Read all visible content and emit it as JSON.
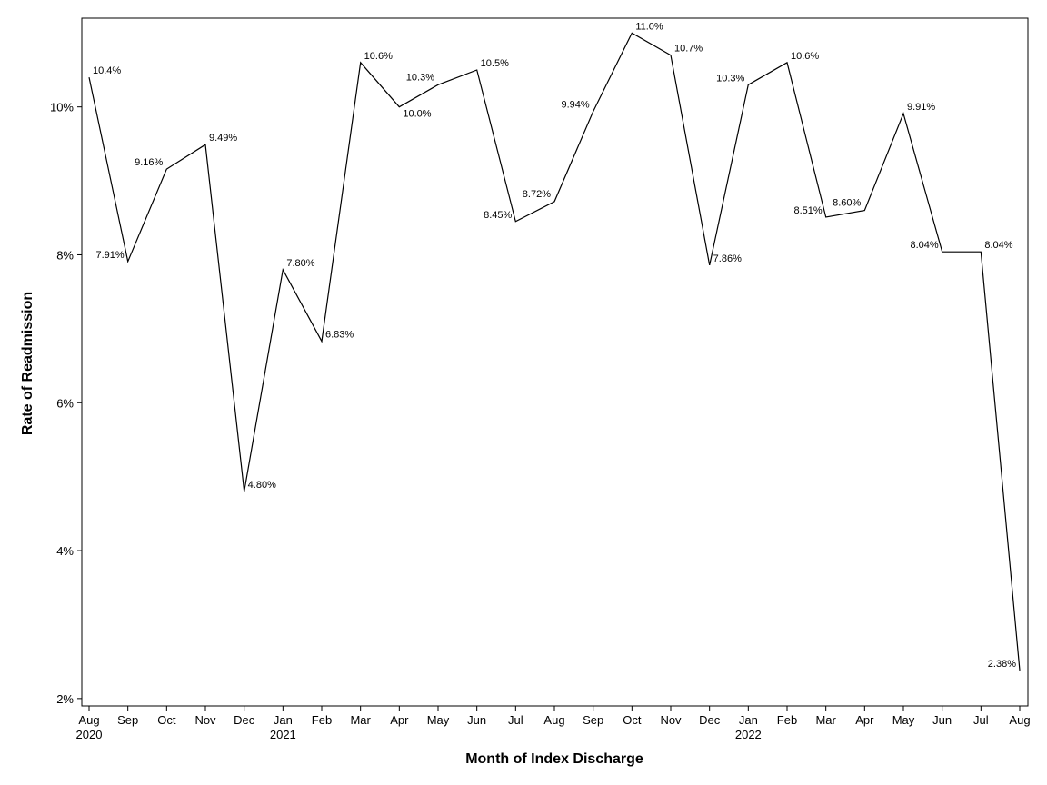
{
  "chart_data": {
    "type": "line",
    "xlabel": "Month of Index Discharge",
    "ylabel": "Rate of Readmission",
    "ylim": [
      1.9,
      11.2
    ],
    "grid": false,
    "legend": "none",
    "line_color": "#000000",
    "y_ticks": [
      {
        "value": 2,
        "label": "2%"
      },
      {
        "value": 4,
        "label": "4%"
      },
      {
        "value": 6,
        "label": "6%"
      },
      {
        "value": 8,
        "label": "8%"
      },
      {
        "value": 10,
        "label": "10%"
      }
    ],
    "points": [
      {
        "month": "Aug",
        "year": "2020",
        "value": 10.4,
        "label": "10.4%",
        "label_pos": "right"
      },
      {
        "month": "Sep",
        "year": "",
        "value": 7.91,
        "label": "7.91%",
        "label_pos": "left"
      },
      {
        "month": "Oct",
        "year": "",
        "value": 9.16,
        "label": "9.16%",
        "label_pos": "left"
      },
      {
        "month": "Nov",
        "year": "",
        "value": 9.49,
        "label": "9.49%",
        "label_pos": "right"
      },
      {
        "month": "Dec",
        "year": "",
        "value": 4.8,
        "label": "4.80%",
        "label_pos": "right"
      },
      {
        "month": "Jan",
        "year": "2021",
        "value": 7.8,
        "label": "7.80%",
        "label_pos": "right"
      },
      {
        "month": "Feb",
        "year": "",
        "value": 6.83,
        "label": "6.83%",
        "label_pos": "right"
      },
      {
        "month": "Mar",
        "year": "",
        "value": 10.6,
        "label": "10.6%",
        "label_pos": "right"
      },
      {
        "month": "Apr",
        "year": "",
        "value": 10.0,
        "label": "10.0%",
        "label_pos": "below"
      },
      {
        "month": "May",
        "year": "",
        "value": 10.3,
        "label": "10.3%",
        "label_pos": "above-left"
      },
      {
        "month": "Jun",
        "year": "",
        "value": 10.5,
        "label": "10.5%",
        "label_pos": "right"
      },
      {
        "month": "Jul",
        "year": "",
        "value": 8.45,
        "label": "8.45%",
        "label_pos": "left"
      },
      {
        "month": "Aug",
        "year": "",
        "value": 8.72,
        "label": "8.72%",
        "label_pos": "above-left"
      },
      {
        "month": "Sep",
        "year": "",
        "value": 9.94,
        "label": "9.94%",
        "label_pos": "left"
      },
      {
        "month": "Oct",
        "year": "",
        "value": 11.0,
        "label": "11.0%",
        "label_pos": "right"
      },
      {
        "month": "Nov",
        "year": "",
        "value": 10.7,
        "label": "10.7%",
        "label_pos": "right"
      },
      {
        "month": "Dec",
        "year": "",
        "value": 7.86,
        "label": "7.86%",
        "label_pos": "right"
      },
      {
        "month": "Jan",
        "year": "2022",
        "value": 10.3,
        "label": "10.3%",
        "label_pos": "left"
      },
      {
        "month": "Feb",
        "year": "",
        "value": 10.6,
        "label": "10.6%",
        "label_pos": "right"
      },
      {
        "month": "Mar",
        "year": "",
        "value": 8.51,
        "label": "8.51%",
        "label_pos": "left"
      },
      {
        "month": "Apr",
        "year": "",
        "value": 8.6,
        "label": "8.60%",
        "label_pos": "above-left"
      },
      {
        "month": "May",
        "year": "",
        "value": 9.91,
        "label": "9.91%",
        "label_pos": "right"
      },
      {
        "month": "Jun",
        "year": "",
        "value": 8.04,
        "label": "8.04%",
        "label_pos": "left"
      },
      {
        "month": "Jul",
        "year": "",
        "value": 8.04,
        "label": "8.04%",
        "label_pos": "right"
      },
      {
        "month": "Aug",
        "year": "",
        "value": 2.38,
        "label": "2.38%",
        "label_pos": "left"
      }
    ]
  }
}
